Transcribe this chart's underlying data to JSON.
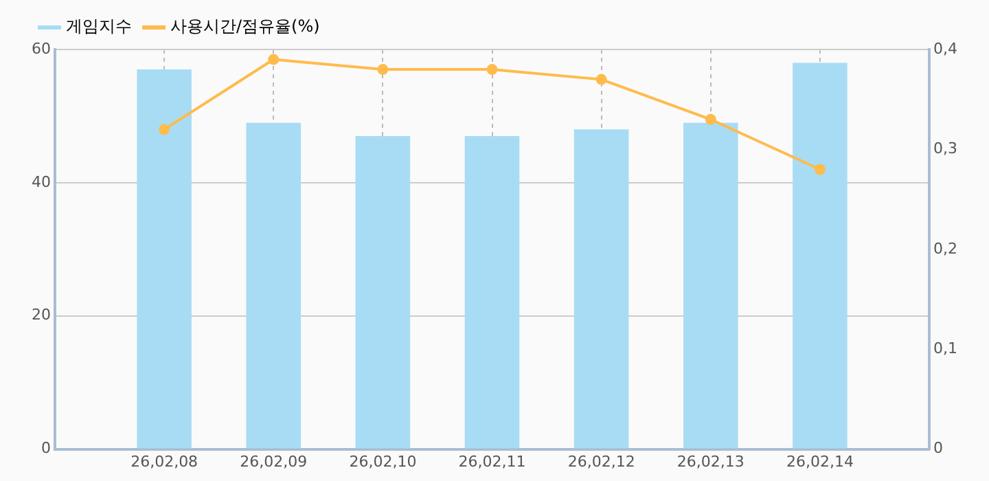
{
  "chart_data": {
    "type": "bar",
    "categories": [
      null,
      "26,02,08",
      "26,02,09",
      "26,02,10",
      "26,02,11",
      "26,02,12",
      "26,02,13",
      "26,02,14",
      null
    ],
    "series": [
      {
        "name": "게임지수",
        "color": "#a8dcf4",
        "values": [
          null,
          57,
          49,
          47,
          47,
          48,
          49,
          58,
          null
        ]
      },
      {
        "name": "사용시간/점유율(%)",
        "type": "line",
        "axis": "y2",
        "color": "#ffbb4c",
        "values": [
          null,
          0.32,
          0.39,
          0.38,
          0.38,
          0.37,
          0.33,
          0.28,
          null
        ]
      }
    ],
    "ylim": [
      0,
      60
    ],
    "yticks": [
      0,
      20,
      40,
      60
    ],
    "y2lim": [
      0,
      0.4
    ],
    "y2ticks": [
      {
        "value": 0,
        "label": "0"
      },
      {
        "value": 0.1,
        "label": "0,1"
      },
      {
        "value": 0.2,
        "label": "0,2"
      },
      {
        "value": 0.3,
        "label": "0,3"
      },
      {
        "value": 0.4,
        "label": "0,4"
      }
    ],
    "grid": true,
    "legend": "top left",
    "marker": "circle",
    "line_style": "solid"
  }
}
